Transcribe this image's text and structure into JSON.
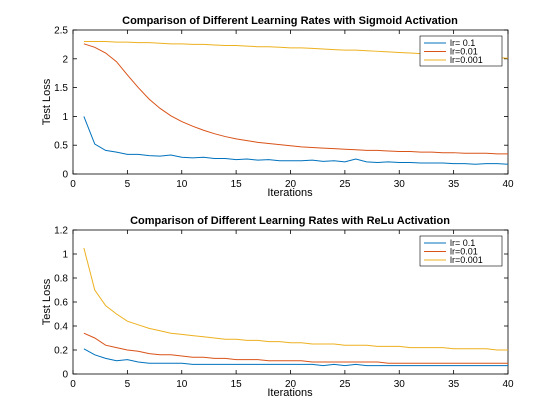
{
  "chart_data": [
    {
      "type": "line",
      "title": "Comparison of Different Learning Rates with Sigmoid Activation",
      "xlabel": "Iterations",
      "ylabel": "Test Loss",
      "xlim": [
        0,
        40
      ],
      "ylim": [
        0,
        2.5
      ],
      "xticks": [
        0,
        5,
        10,
        15,
        20,
        25,
        30,
        35,
        40
      ],
      "yticks": [
        0,
        0.5,
        1,
        1.5,
        2,
        2.5
      ],
      "grid": false,
      "legend_position": "top-right",
      "x": [
        1,
        2,
        3,
        4,
        5,
        6,
        7,
        8,
        9,
        10,
        11,
        12,
        13,
        14,
        15,
        16,
        17,
        18,
        19,
        20,
        21,
        22,
        23,
        24,
        25,
        26,
        27,
        28,
        29,
        30,
        31,
        32,
        33,
        34,
        35,
        36,
        37,
        38,
        39,
        40
      ],
      "series": [
        {
          "name": "lr= 0.1",
          "color": "#0072BD",
          "values": [
            1.0,
            0.52,
            0.41,
            0.38,
            0.34,
            0.34,
            0.32,
            0.31,
            0.33,
            0.29,
            0.28,
            0.29,
            0.27,
            0.27,
            0.25,
            0.26,
            0.24,
            0.25,
            0.23,
            0.23,
            0.23,
            0.24,
            0.22,
            0.23,
            0.21,
            0.26,
            0.21,
            0.2,
            0.21,
            0.2,
            0.2,
            0.19,
            0.19,
            0.19,
            0.18,
            0.18,
            0.17,
            0.18,
            0.18,
            0.17
          ]
        },
        {
          "name": "lr=0.01",
          "color": "#D95319",
          "values": [
            2.26,
            2.2,
            2.1,
            1.95,
            1.72,
            1.5,
            1.3,
            1.14,
            1.01,
            0.91,
            0.83,
            0.76,
            0.7,
            0.65,
            0.61,
            0.58,
            0.55,
            0.53,
            0.51,
            0.49,
            0.47,
            0.46,
            0.45,
            0.44,
            0.43,
            0.42,
            0.41,
            0.41,
            0.4,
            0.39,
            0.39,
            0.38,
            0.38,
            0.37,
            0.37,
            0.36,
            0.36,
            0.36,
            0.35,
            0.35
          ]
        },
        {
          "name": "lr=0.001",
          "color": "#EDB120",
          "values": [
            2.3,
            2.3,
            2.3,
            2.29,
            2.29,
            2.28,
            2.28,
            2.27,
            2.26,
            2.26,
            2.25,
            2.25,
            2.24,
            2.23,
            2.23,
            2.22,
            2.21,
            2.21,
            2.2,
            2.19,
            2.19,
            2.18,
            2.17,
            2.16,
            2.15,
            2.15,
            2.14,
            2.13,
            2.12,
            2.11,
            2.1,
            2.09,
            2.08,
            2.07,
            2.06,
            2.05,
            2.04,
            2.03,
            2.02,
            2.01
          ]
        }
      ]
    },
    {
      "type": "line",
      "title": "Comparison of Different Learning Rates with ReLu Activation",
      "xlabel": "Iterations",
      "ylabel": "Test Loss",
      "xlim": [
        0,
        40
      ],
      "ylim": [
        0,
        1.2
      ],
      "xticks": [
        0,
        5,
        10,
        15,
        20,
        25,
        30,
        35,
        40
      ],
      "yticks": [
        0,
        0.2,
        0.4,
        0.6,
        0.8,
        1,
        1.2
      ],
      "grid": false,
      "legend_position": "top-right",
      "x": [
        1,
        2,
        3,
        4,
        5,
        6,
        7,
        8,
        9,
        10,
        11,
        12,
        13,
        14,
        15,
        16,
        17,
        18,
        19,
        20,
        21,
        22,
        23,
        24,
        25,
        26,
        27,
        28,
        29,
        30,
        31,
        32,
        33,
        34,
        35,
        36,
        37,
        38,
        39,
        40
      ],
      "series": [
        {
          "name": "lr= 0.1",
          "color": "#0072BD",
          "values": [
            0.21,
            0.16,
            0.13,
            0.11,
            0.12,
            0.1,
            0.09,
            0.09,
            0.09,
            0.09,
            0.08,
            0.08,
            0.08,
            0.08,
            0.08,
            0.08,
            0.08,
            0.08,
            0.08,
            0.08,
            0.08,
            0.08,
            0.07,
            0.08,
            0.07,
            0.08,
            0.07,
            0.07,
            0.07,
            0.07,
            0.07,
            0.07,
            0.07,
            0.07,
            0.07,
            0.07,
            0.07,
            0.07,
            0.07,
            0.07
          ]
        },
        {
          "name": "lr=0.01",
          "color": "#D95319",
          "values": [
            0.34,
            0.3,
            0.24,
            0.22,
            0.2,
            0.19,
            0.17,
            0.16,
            0.16,
            0.15,
            0.14,
            0.14,
            0.13,
            0.13,
            0.12,
            0.12,
            0.12,
            0.11,
            0.11,
            0.11,
            0.11,
            0.1,
            0.1,
            0.1,
            0.1,
            0.1,
            0.1,
            0.1,
            0.09,
            0.09,
            0.09,
            0.09,
            0.09,
            0.09,
            0.09,
            0.09,
            0.09,
            0.09,
            0.09,
            0.09
          ]
        },
        {
          "name": "lr=0.001",
          "color": "#EDB120",
          "values": [
            1.05,
            0.7,
            0.57,
            0.5,
            0.44,
            0.41,
            0.38,
            0.36,
            0.34,
            0.33,
            0.32,
            0.31,
            0.3,
            0.29,
            0.29,
            0.28,
            0.28,
            0.27,
            0.27,
            0.26,
            0.26,
            0.25,
            0.25,
            0.25,
            0.24,
            0.24,
            0.24,
            0.23,
            0.23,
            0.23,
            0.22,
            0.22,
            0.22,
            0.22,
            0.21,
            0.21,
            0.21,
            0.21,
            0.2,
            0.2
          ]
        }
      ]
    }
  ]
}
